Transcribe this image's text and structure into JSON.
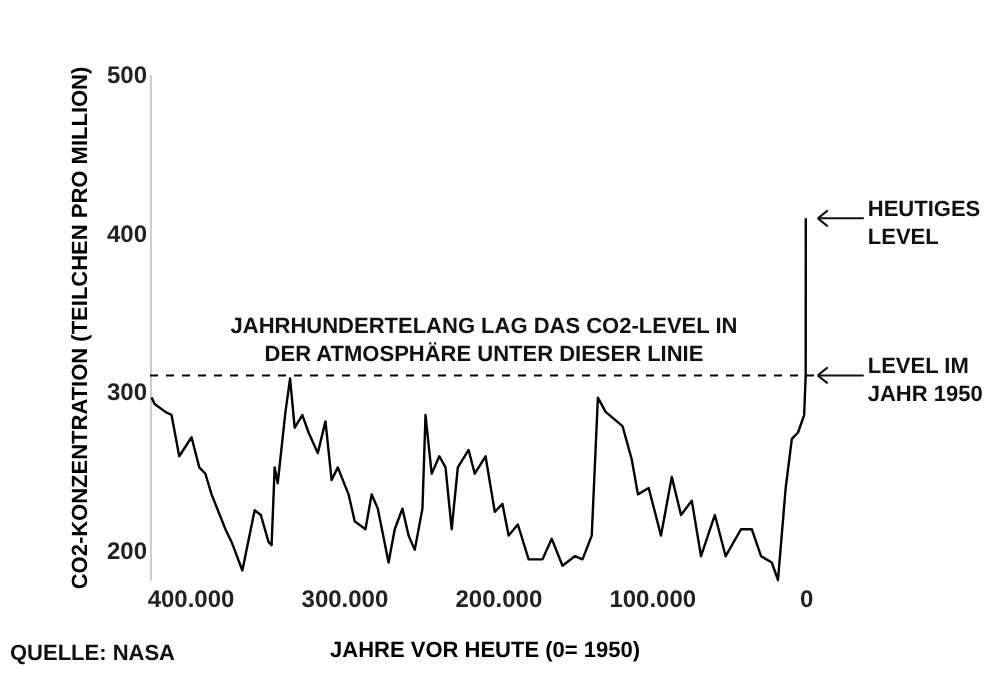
{
  "chart_data": {
    "type": "line",
    "xlabel": "JAHRE VOR HEUTE (0= 1950)",
    "ylabel": "CO2-KONZENTRATION (TEILCHEN PRO MILLION)",
    "x": [
      425000,
      423000,
      416000,
      412000,
      407000,
      399000,
      394000,
      390000,
      386000,
      377000,
      373000,
      366000,
      358000,
      354000,
      349000,
      347000,
      345000,
      343000,
      338000,
      335000,
      332000,
      327000,
      323000,
      317000,
      312000,
      308000,
      304000,
      297000,
      293000,
      286000,
      282000,
      278000,
      271000,
      267000,
      262000,
      258000,
      254000,
      249000,
      247000,
      243000,
      238000,
      234000,
      230000,
      226000,
      219000,
      215000,
      208000,
      202000,
      197000,
      193000,
      187000,
      180000,
      171000,
      165000,
      158000,
      150000,
      145000,
      139000,
      135000,
      130000,
      119000,
      113000,
      109000,
      102000,
      94000,
      87000,
      81000,
      74000,
      68000,
      59000,
      52000,
      42000,
      35000,
      29000,
      22000,
      18000,
      13000,
      9000,
      5000,
      1000,
      0,
      -70
    ],
    "values": [
      296,
      292,
      287,
      285,
      259,
      271,
      252,
      248,
      235,
      213,
      205,
      187,
      225,
      222,
      205,
      203,
      252,
      242,
      287,
      308,
      277,
      285,
      274,
      261,
      281,
      244,
      252,
      235,
      218,
      213,
      235,
      226,
      192,
      213,
      226,
      209,
      200,
      226,
      285,
      248,
      259,
      252,
      213,
      252,
      263,
      248,
      259,
      224,
      229,
      209,
      216,
      194,
      194,
      207,
      190,
      196,
      194,
      209,
      296,
      287,
      278,
      257,
      235,
      239,
      209,
      246,
      222,
      231,
      196,
      222,
      196,
      213,
      213,
      196,
      192,
      181,
      239,
      270,
      274,
      285,
      310,
      409
    ],
    "color": "#000000",
    "xlim": [
      426000,
      -8000
    ],
    "ylim": [
      181,
      500
    ],
    "xticks": [
      {
        "value": 400000,
        "label": "400.000"
      },
      {
        "value": 300000,
        "label": "300.000"
      },
      {
        "value": 200000,
        "label": "200.000"
      },
      {
        "value": 100000,
        "label": "100.000"
      },
      0
    ],
    "yticks": [
      200,
      300,
      400,
      500
    ],
    "ref_lines": [
      {
        "axis": "y",
        "value": 310,
        "label": "JAHRHUNDERTELANG LAG DAS CO2-LEVEL IN\nDER ATMOSPHÄRE UNTER DIESER LINIE",
        "color": "#000000",
        "line_style": "dashed"
      }
    ],
    "annotations": [
      {
        "text": "HEUTIGES\nLEVEL",
        "x": -70,
        "y": 409
      },
      {
        "text": "LEVEL IM\nJAHR 1950",
        "x": 0,
        "y": 310
      },
      "QUELLE: NASA"
    ],
    "grid": false,
    "marker": "none",
    "line_style": "solid"
  }
}
